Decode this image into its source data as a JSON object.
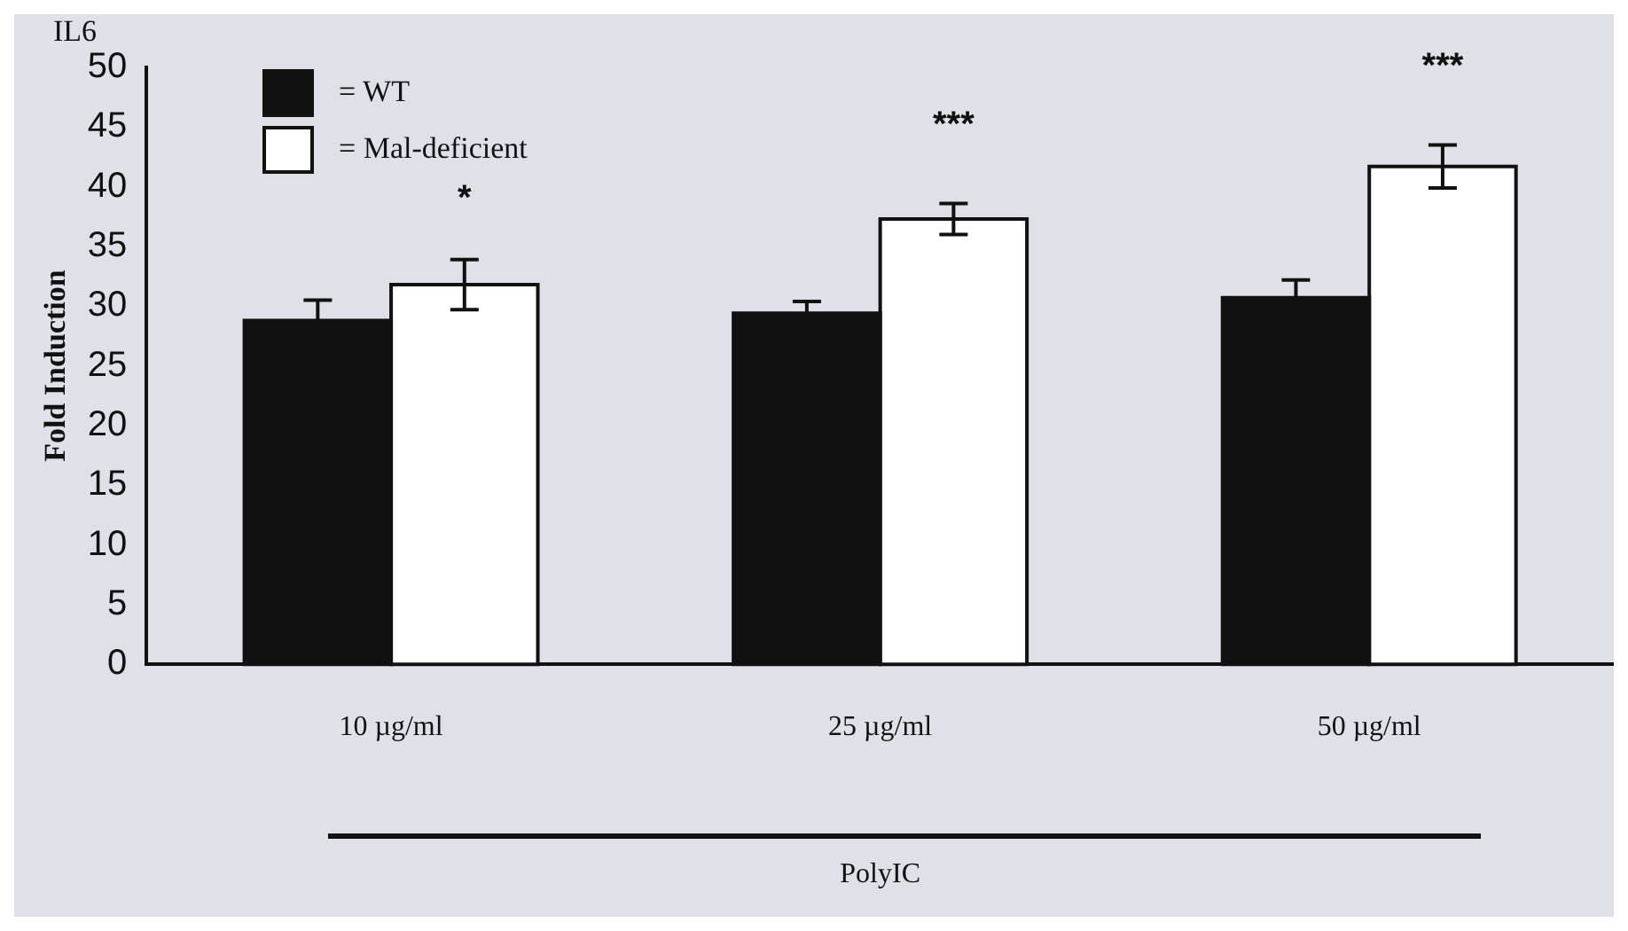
{
  "chart_data": {
    "type": "bar",
    "title": "IL6",
    "ylabel": "Fold Induction",
    "xlabel": "PolyIC",
    "categories": [
      "10 µg/ml",
      "25 µg/ml",
      "50 µg/ml"
    ],
    "series": [
      {
        "name": "= WT",
        "color": "#111111",
        "values": [
          28.8,
          29.4,
          30.7
        ],
        "errors": [
          1.7,
          1.0,
          1.5
        ]
      },
      {
        "name": "= Mal-deficient",
        "color": "#ffffff",
        "values": [
          31.8,
          37.3,
          41.7
        ],
        "errors": [
          2.1,
          1.3,
          1.8
        ]
      }
    ],
    "ylim": [
      0,
      50
    ],
    "yticks": [
      0,
      5,
      10,
      15,
      20,
      25,
      30,
      35,
      40,
      45,
      50
    ],
    "grid": false,
    "legend": "top left",
    "annotations": [
      "*",
      "***",
      "***"
    ]
  }
}
